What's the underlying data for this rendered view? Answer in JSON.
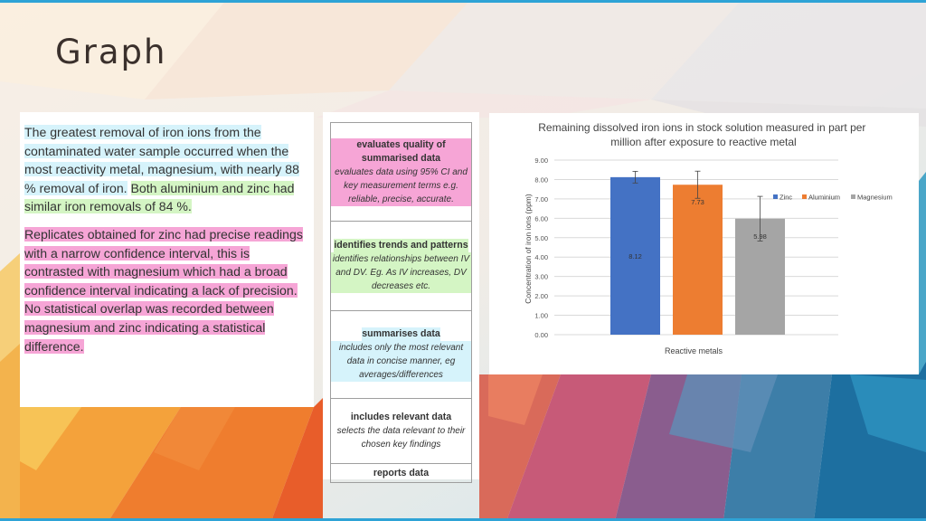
{
  "slide": {
    "title": "Graph"
  },
  "text_panel": {
    "p1": [
      {
        "text": "The greatest removal of iron ions from the contaminated water sample occurred when the most reactivity metal, magnesium, with nearly 88 % removal of iron.",
        "hl": "cyan"
      },
      {
        "text": " ",
        "hl": "none"
      },
      {
        "text": "Both aluminium and zinc had similar iron removals of 84 %.",
        "hl": "green"
      }
    ],
    "p2": "Replicates obtained for zinc had precise readings with a narrow confidence interval, this is contrasted with magnesium which had a broad confidence interval indicating a lack of precision. No statistical overlap was recorded between magnesium and zinc indicating a statistical difference."
  },
  "rubric": {
    "r1": {
      "head": "evaluates quality of summarised data",
      "desc": "evaluates data using 95% CI and key measurement terms e.g. reliable,  precise, accurate."
    },
    "r2": {
      "head": "identifies trends and patterns",
      "desc": "identifies relationships between IV and DV. Eg. As IV increases, DV decreases etc."
    },
    "r3": {
      "head": "summarises data",
      "desc": "includes only the most relevant data in concise manner, eg averages/differences"
    },
    "r4": {
      "head": "includes relevant data",
      "desc": "selects the data relevant to their chosen key findings"
    },
    "r5": {
      "head": "reports data"
    },
    "colors": {
      "pink": "#f6a5d6",
      "green": "#d4f5c4",
      "cyan": "#d6f3fb"
    }
  },
  "chart_data": {
    "type": "bar",
    "title": "Remaining dissolved iron ions in stock solution measured in part per million after exposure to reactive metal",
    "xlabel": "Reactive metals",
    "ylabel": "Concentration of iron ions (ppm)",
    "ylim": [
      0,
      9
    ],
    "yticks": [
      "0.00",
      "1.00",
      "2.00",
      "3.00",
      "4.00",
      "5.00",
      "6.00",
      "7.00",
      "8.00",
      "9.00"
    ],
    "grid": true,
    "legend_position": "right",
    "series": [
      {
        "name": "Zinc",
        "value": 8.12,
        "label": "8.12",
        "error": 0.3,
        "color": "#4472c4"
      },
      {
        "name": "Aluminium",
        "value": 7.73,
        "label": "7.73",
        "error": 0.7,
        "color": "#ed7d31"
      },
      {
        "name": "Magnesium",
        "value": 5.98,
        "label": "5.98",
        "error": 1.15,
        "color": "#a5a5a5"
      }
    ]
  }
}
